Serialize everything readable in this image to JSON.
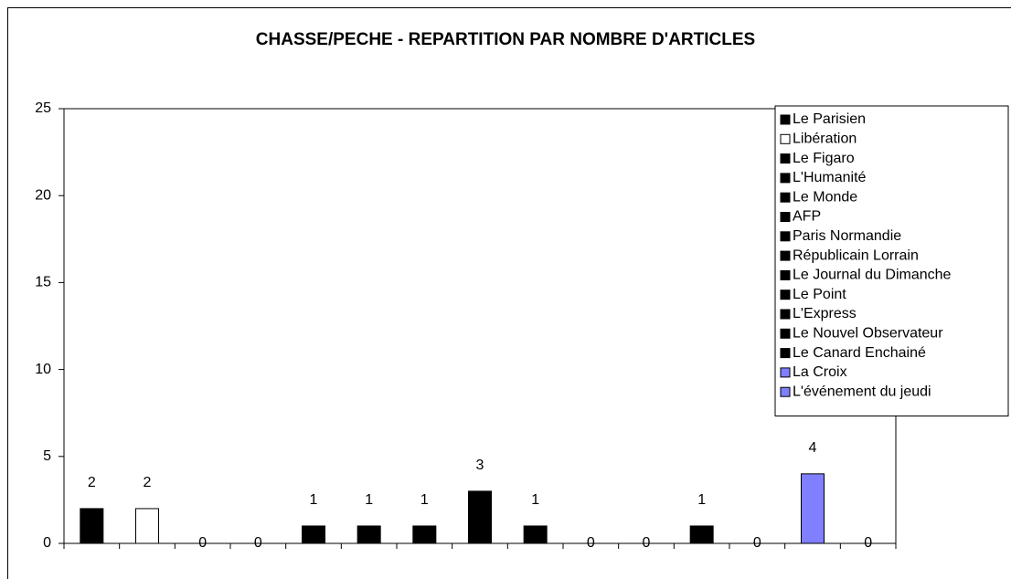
{
  "chart_data": {
    "type": "bar",
    "title": "CHASSE/PECHE - REPARTITION PAR NOMBRE D'ARTICLES",
    "categories": [
      "Le Parisien",
      "Libération",
      "Le Figaro",
      "L'Humanité",
      "Le Monde",
      "AFP",
      "Paris Normandie",
      "Républicain Lorrain",
      "Le Journal du Dimanche",
      "Le Point",
      "L'Express",
      "Le Nouvel Observateur",
      "Le Canard Enchainé",
      "La Croix",
      "L'événement du jeudi"
    ],
    "values": [
      2,
      2,
      0,
      0,
      1,
      1,
      1,
      3,
      1,
      0,
      0,
      1,
      0,
      4,
      0
    ],
    "colors": [
      "#000000",
      "#ffffff",
      "#000000",
      "#000000",
      "#000000",
      "#000000",
      "#000000",
      "#000000",
      "#000000",
      "#000000",
      "#000000",
      "#000000",
      "#000000",
      "#7f7fff",
      "#7f7fff"
    ],
    "ylim": [
      0,
      25
    ],
    "yticks": [
      0,
      5,
      10,
      15,
      20,
      25
    ],
    "legend": "right"
  }
}
